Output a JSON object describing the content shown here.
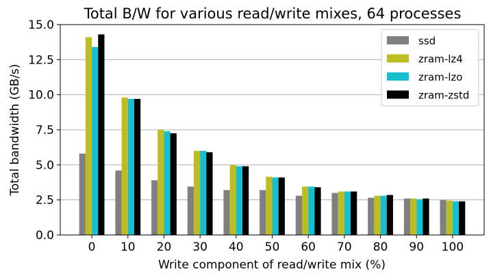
{
  "chart_data": {
    "type": "bar",
    "title": "Total B/W for various read/write mixes, 64 processes",
    "xlabel": "Write component of read/write mix (%)",
    "ylabel": "Total bandwidth (GB/s)",
    "categories": [
      "0",
      "10",
      "20",
      "30",
      "40",
      "50",
      "60",
      "70",
      "80",
      "90",
      "100"
    ],
    "ylim": [
      0,
      15
    ],
    "yticks": [
      "0.0",
      "2.5",
      "5.0",
      "7.5",
      "10.0",
      "12.5",
      "15.0"
    ],
    "grid": "horizontal",
    "legend_position": "top-right",
    "series": [
      {
        "name": "ssd",
        "color": "#808080",
        "values": [
          5.8,
          4.6,
          3.9,
          3.45,
          3.2,
          3.2,
          2.8,
          3.0,
          2.65,
          2.6,
          2.5
        ]
      },
      {
        "name": "zram-lz4",
        "color": "#bcbd22",
        "values": [
          14.1,
          9.8,
          7.5,
          6.0,
          5.0,
          4.15,
          3.45,
          3.1,
          2.8,
          2.6,
          2.45
        ]
      },
      {
        "name": "zram-lzo",
        "color": "#17becf",
        "values": [
          13.4,
          9.7,
          7.4,
          6.0,
          4.9,
          4.1,
          3.45,
          3.1,
          2.8,
          2.55,
          2.4
        ]
      },
      {
        "name": "zram-zstd",
        "color": "#000000",
        "values": [
          14.3,
          9.7,
          7.25,
          5.9,
          4.9,
          4.1,
          3.4,
          3.1,
          2.85,
          2.6,
          2.4
        ]
      }
    ]
  }
}
